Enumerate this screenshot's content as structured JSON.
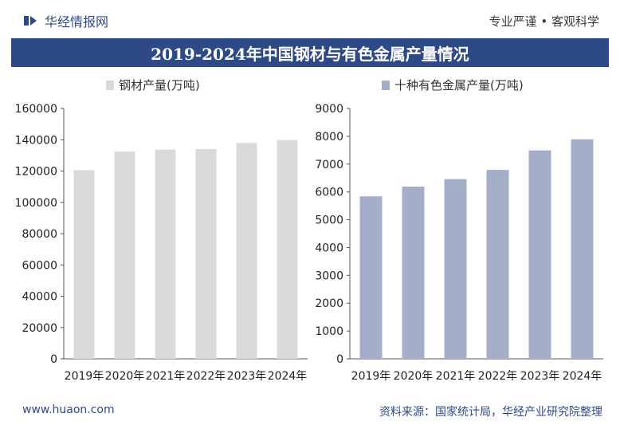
{
  "header": {
    "brand": "华经情报网",
    "slogan": "专业严谨 • 客观科学",
    "title": "2019-2024年中国钢材与有色金属产量情况"
  },
  "footer": {
    "website": "www.huaon.com",
    "source": "资料来源：国家统计局，华经产业研究院整理"
  },
  "colors": {
    "brand": "#2e4a86",
    "steel_bar": "#d9d9d9",
    "metal_bar": "#a4aec8"
  },
  "chart_data": [
    {
      "type": "bar",
      "categories": [
        "2019年",
        "2020年",
        "2021年",
        "2022年",
        "2023年",
        "2024年"
      ],
      "series": [
        {
          "name": "钢材产量(万吨)",
          "values": [
            120500,
            132500,
            133700,
            134000,
            138000,
            139800
          ]
        }
      ],
      "ylim": [
        0,
        160000
      ],
      "yticks": [
        0,
        20000,
        40000,
        60000,
        80000,
        100000,
        120000,
        140000,
        160000
      ],
      "legend": "top-left",
      "grid": false
    },
    {
      "type": "bar",
      "categories": [
        "2019年",
        "2020年",
        "2021年",
        "2022年",
        "2023年",
        "2024年"
      ],
      "series": [
        {
          "name": "十种有色金属产量(万吨)",
          "values": [
            5840,
            6190,
            6460,
            6790,
            7490,
            7890
          ]
        }
      ],
      "ylim": [
        0,
        9000
      ],
      "yticks": [
        0,
        1000,
        2000,
        3000,
        4000,
        5000,
        6000,
        7000,
        8000,
        9000
      ],
      "legend": "top-left",
      "grid": false
    }
  ]
}
